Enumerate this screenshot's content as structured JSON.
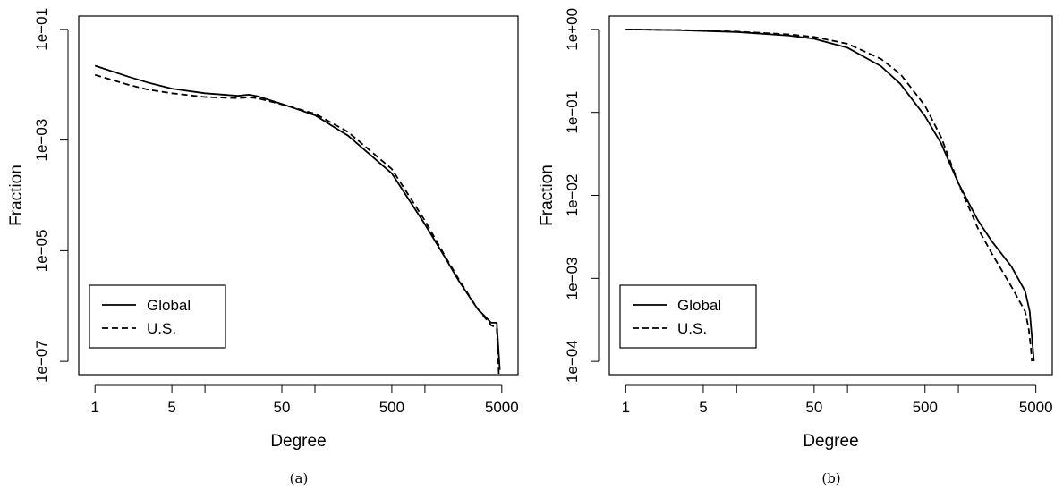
{
  "chart_data": [
    {
      "type": "line",
      "panel_label": "(a)",
      "xlabel": "Degree",
      "ylabel": "Fraction",
      "x_scale": "log",
      "y_scale": "log",
      "xlim": [
        1,
        5000
      ],
      "ylim": [
        1e-07,
        0.1
      ],
      "x_ticks": [
        1,
        5,
        50,
        500,
        5000
      ],
      "x_tick_labels": [
        "1",
        "5",
        "50",
        "500",
        "5000"
      ],
      "x_minor_ticks": [
        10,
        100,
        1000
      ],
      "y_ticks": [
        1e-07,
        1e-05,
        0.001,
        0.1
      ],
      "y_tick_labels": [
        "1e−07",
        "1e−05",
        "1e−03",
        "1e−01"
      ],
      "grid": false,
      "legend": {
        "position": "bottom-left",
        "entries": [
          "Global",
          "U.S."
        ]
      },
      "series": [
        {
          "name": "Global",
          "style": "solid",
          "x": [
            1,
            2,
            3,
            5,
            10,
            20,
            25,
            30,
            50,
            100,
            200,
            500,
            1000,
            1500,
            2000,
            3000,
            4000,
            4500,
            4800
          ],
          "y": [
            0.022,
            0.014,
            0.011,
            0.0085,
            0.007,
            0.0063,
            0.0066,
            0.0062,
            0.0045,
            0.0028,
            0.0012,
            0.00025,
            3e-05,
            8e-06,
            3e-06,
            9e-07,
            5e-07,
            5e-07,
            7e-08
          ]
        },
        {
          "name": "U.S.",
          "style": "dashed",
          "x": [
            1,
            2,
            3,
            5,
            10,
            20,
            25,
            30,
            50,
            100,
            200,
            500,
            1000,
            1500,
            2000,
            3000,
            4000,
            4500,
            4700
          ],
          "y": [
            0.015,
            0.01,
            0.0082,
            0.007,
            0.006,
            0.0057,
            0.0059,
            0.0057,
            0.0044,
            0.003,
            0.0014,
            0.0003,
            3.5e-05,
            8.5e-06,
            3.2e-06,
            9e-07,
            4.5e-07,
            4e-07,
            6e-08
          ]
        }
      ]
    },
    {
      "type": "line",
      "panel_label": "(b)",
      "xlabel": "Degree",
      "ylabel": "Fraction",
      "x_scale": "log",
      "y_scale": "log",
      "xlim": [
        1,
        5000
      ],
      "ylim": [
        0.0001,
        1
      ],
      "x_ticks": [
        1,
        5,
        50,
        500,
        5000
      ],
      "x_tick_labels": [
        "1",
        "5",
        "50",
        "500",
        "5000"
      ],
      "x_minor_ticks": [
        10,
        100,
        1000
      ],
      "y_ticks": [
        0.0001,
        0.001,
        0.01,
        0.1,
        1
      ],
      "y_tick_labels": [
        "1e−04",
        "1e−03",
        "1e−02",
        "1e−01",
        "1e+00"
      ],
      "grid": false,
      "legend": {
        "position": "bottom-left",
        "entries": [
          "Global",
          "U.S."
        ]
      },
      "series": [
        {
          "name": "Global",
          "style": "solid",
          "x": [
            1,
            3,
            10,
            30,
            50,
            100,
            200,
            300,
            500,
            700,
            1000,
            1500,
            2000,
            3000,
            4000,
            4400,
            4600,
            4800
          ],
          "y": [
            1,
            0.98,
            0.93,
            0.84,
            0.77,
            0.6,
            0.36,
            0.22,
            0.09,
            0.042,
            0.014,
            0.005,
            0.0028,
            0.0014,
            0.0007,
            0.0004,
            0.0002,
            0.0001
          ]
        },
        {
          "name": "U.S.",
          "style": "dashed",
          "x": [
            1,
            3,
            10,
            30,
            50,
            100,
            200,
            300,
            500,
            700,
            1000,
            1500,
            2000,
            3000,
            4000,
            4300,
            4500,
            4600
          ],
          "y": [
            1,
            0.985,
            0.94,
            0.87,
            0.81,
            0.67,
            0.44,
            0.29,
            0.12,
            0.05,
            0.014,
            0.004,
            0.002,
            0.0008,
            0.0004,
            0.00025,
            0.00015,
            0.0001
          ]
        }
      ]
    }
  ]
}
